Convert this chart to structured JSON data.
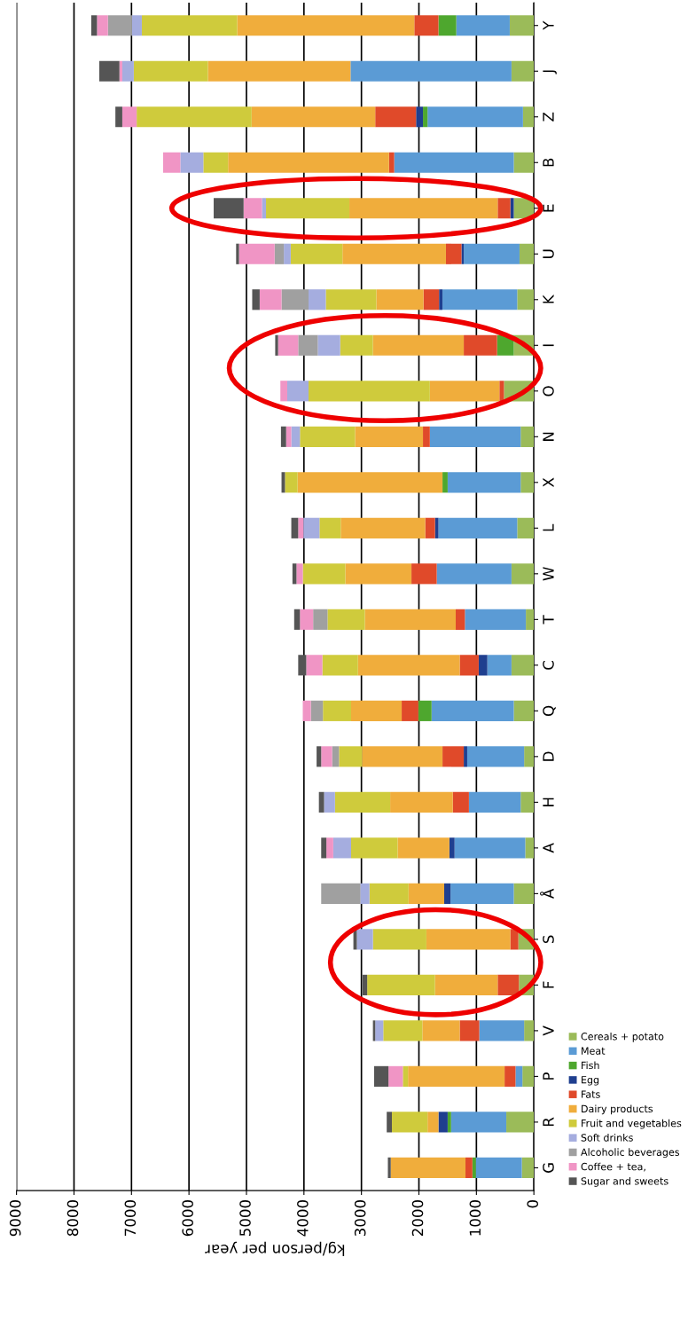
{
  "chart_data": {
    "type": "bar",
    "orientation": "horizontal",
    "stacked": true,
    "xlabel": "kg/person per year",
    "categories": [
      "Y",
      "J",
      "Z",
      "B",
      "E",
      "U",
      "K",
      "I",
      "O",
      "N",
      "X",
      "L",
      "W",
      "T",
      "C",
      "Q",
      "D",
      "H",
      "A",
      "Å",
      "S",
      "F",
      "V",
      "P",
      "R",
      "G"
    ],
    "xlim": [
      9000,
      0
    ],
    "xticks": [
      0,
      1000,
      2000,
      3000,
      4000,
      5000,
      6000,
      7000,
      8000,
      9000
    ],
    "grid": "x",
    "legend": "right",
    "series": [
      {
        "name": "Cereals + potato",
        "color": "#9bbb59",
        "values": [
          420,
          390,
          190,
          350,
          350,
          250,
          290,
          350,
          520,
          230,
          230,
          290,
          390,
          140,
          390,
          350,
          170,
          230,
          150,
          350,
          270,
          260,
          170,
          200,
          480,
          210
        ]
      },
      {
        "name": "Meat",
        "color": "#5b9bd5",
        "values": [
          930,
          2800,
          1660,
          2080,
          0,
          970,
          1300,
          0,
          0,
          1580,
          1270,
          1370,
          1300,
          1060,
          420,
          1430,
          990,
          900,
          1230,
          1100,
          0,
          0,
          780,
          120,
          960,
          800
        ]
      },
      {
        "name": "Fish",
        "color": "#4ea72e",
        "values": [
          310,
          0,
          80,
          0,
          0,
          0,
          0,
          290,
          0,
          0,
          90,
          0,
          0,
          0,
          0,
          230,
          0,
          0,
          0,
          0,
          0,
          0,
          0,
          0,
          60,
          60
        ]
      },
      {
        "name": "Egg",
        "color": "#1f3f8f",
        "values": [
          0,
          0,
          120,
          0,
          60,
          40,
          60,
          0,
          0,
          0,
          0,
          60,
          0,
          0,
          150,
          0,
          60,
          0,
          90,
          110,
          0,
          0,
          0,
          0,
          160,
          0
        ]
      },
      {
        "name": "Fats",
        "color": "#e04a2a",
        "values": [
          420,
          0,
          710,
          90,
          220,
          270,
          270,
          580,
          80,
          120,
          0,
          170,
          440,
          160,
          330,
          290,
          370,
          280,
          0,
          0,
          140,
          370,
          340,
          190,
          0,
          120
        ]
      },
      {
        "name": "Dairy products",
        "color": "#f0ad3c",
        "values": [
          3080,
          2480,
          2150,
          2800,
          2580,
          1800,
          820,
          1580,
          1210,
          1180,
          2520,
          1470,
          1150,
          1580,
          1770,
          880,
          1400,
          1090,
          900,
          620,
          1460,
          1090,
          650,
          1680,
          190,
          1300
        ]
      },
      {
        "name": "Fruit and vegetables",
        "color": "#cfcb3c",
        "values": [
          1660,
          1290,
          2000,
          430,
          1450,
          900,
          880,
          570,
          2110,
          960,
          220,
          370,
          740,
          650,
          620,
          490,
          400,
          960,
          810,
          680,
          930,
          1180,
          680,
          90,
          620,
          0
        ]
      },
      {
        "name": "Soft drinks",
        "color": "#a5addf",
        "values": [
          170,
          200,
          0,
          400,
          70,
          120,
          300,
          390,
          370,
          150,
          0,
          280,
          0,
          0,
          0,
          0,
          0,
          190,
          310,
          160,
          280,
          0,
          140,
          0,
          0,
          0
        ]
      },
      {
        "name": "Alcoholic beverages",
        "color": "#a0a0a0",
        "values": [
          420,
          0,
          0,
          0,
          0,
          160,
          470,
          340,
          0,
          0,
          0,
          0,
          0,
          250,
          0,
          210,
          120,
          0,
          0,
          680,
          0,
          0,
          0,
          0,
          0,
          0
        ]
      },
      {
        "name": "Coffee + tea,",
        "color": "#f095c5",
        "values": [
          190,
          50,
          250,
          300,
          320,
          620,
          380,
          350,
          120,
          90,
          0,
          90,
          110,
          230,
          280,
          140,
          190,
          0,
          120,
          0,
          null,
          0,
          0,
          250,
          0,
          0
        ]
      },
      {
        "name": "Sugar and sweets",
        "color": "#555555",
        "values": [
          100,
          350,
          120,
          0,
          520,
          50,
          130,
          50,
          0,
          90,
          60,
          120,
          70,
          100,
          140,
          0,
          80,
          90,
          90,
          0,
          60,
          80,
          40,
          250,
          90,
          50
        ]
      }
    ]
  }
}
